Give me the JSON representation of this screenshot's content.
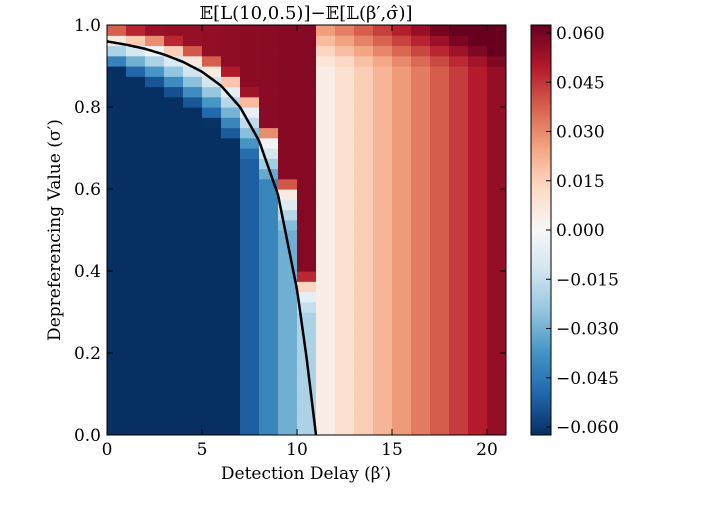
{
  "chart_data": {
    "type": "heatmap",
    "title": "𝔼[L(10,0.5)]−𝔼[𝕃(β′,σ̂)]",
    "xlabel": "Detection Delay (β′)",
    "ylabel": "Depreferencing Value (σ′)",
    "xlim": [
      0,
      21
    ],
    "ylim": [
      0,
      1
    ],
    "x_ticks": [
      "0",
      "5",
      "10",
      "15",
      "20"
    ],
    "y_ticks": [
      "0.0",
      "0.2",
      "0.4",
      "0.6",
      "0.8",
      "1.0"
    ],
    "colorbar": {
      "colormap": "RdBu_r",
      "vmin": -0.06,
      "vmax": 0.06,
      "ticks": [
        "−0.060",
        "−0.045",
        "−0.030",
        "−0.015",
        "0.000",
        "0.015",
        "0.030",
        "0.045",
        "0.060"
      ]
    },
    "zero_contour": {
      "x": [
        0,
        1,
        2,
        3,
        4,
        5,
        6,
        7,
        8,
        9,
        10,
        10.5,
        11
      ],
      "y": [
        0.96,
        0.952,
        0.942,
        0.928,
        0.91,
        0.886,
        0.852,
        0.8,
        0.718,
        0.586,
        0.355,
        0.19,
        0.0
      ]
    }
  }
}
